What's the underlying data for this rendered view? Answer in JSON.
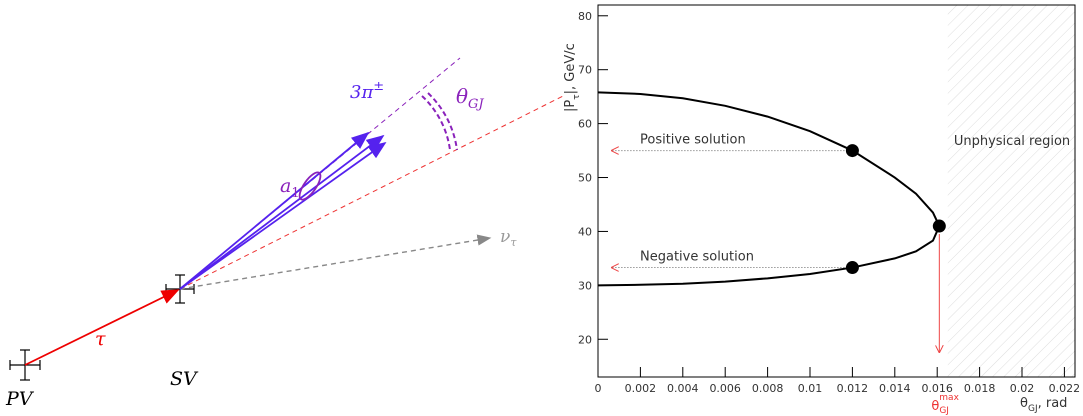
{
  "diagram": {
    "pv": "PV",
    "sv": "SV",
    "tau": "τ",
    "a1": {
      "base": "a",
      "sub": "1"
    },
    "pions": {
      "base": "3π",
      "sup": "±"
    },
    "theta": {
      "base": "θ",
      "sub": "GJ"
    },
    "nu": {
      "base": "ν",
      "sub": "τ"
    }
  },
  "chart_data": {
    "type": "line",
    "x": [
      0,
      0.002,
      0.004,
      0.006,
      0.008,
      0.01,
      0.012,
      0.014,
      0.015,
      0.0158,
      0.0161
    ],
    "series": [
      {
        "name": "Positive solution",
        "color": "#000000",
        "values": [
          65.8,
          65.5,
          64.7,
          63.3,
          61.3,
          58.6,
          55,
          50,
          47,
          43.5,
          41
        ]
      },
      {
        "name": "Negative solution",
        "color": "#000000",
        "values": [
          30,
          30.1,
          30.3,
          30.7,
          31.3,
          32.1,
          33.3,
          35,
          36.3,
          38.3,
          41
        ]
      }
    ],
    "points": [
      {
        "x": 0.012,
        "y": 55
      },
      {
        "x": 0.012,
        "y": 33.3
      },
      {
        "x": 0.0161,
        "y": 41
      }
    ],
    "region": {
      "label": "Unphysical region",
      "xmin": 0.0165
    },
    "max_marker": {
      "x": 0.0161,
      "label": {
        "pre": "θ",
        "sub": "GJ",
        "sup": "max"
      }
    },
    "xlabel": {
      "pre": "θ",
      "sub": "GJ",
      "post": ",  rad"
    },
    "ylabel": {
      "pre": "|P",
      "sub": "τ",
      "post": "|, GeV/c"
    },
    "xlim": [
      0,
      0.0225
    ],
    "ylim": [
      13,
      82
    ],
    "xticks": [
      0,
      0.002,
      0.004,
      0.006,
      0.008,
      0.01,
      0.012,
      0.014,
      0.016,
      0.018,
      0.02,
      0.022
    ],
    "yticks": [
      20,
      30,
      40,
      50,
      60,
      70,
      80
    ]
  }
}
